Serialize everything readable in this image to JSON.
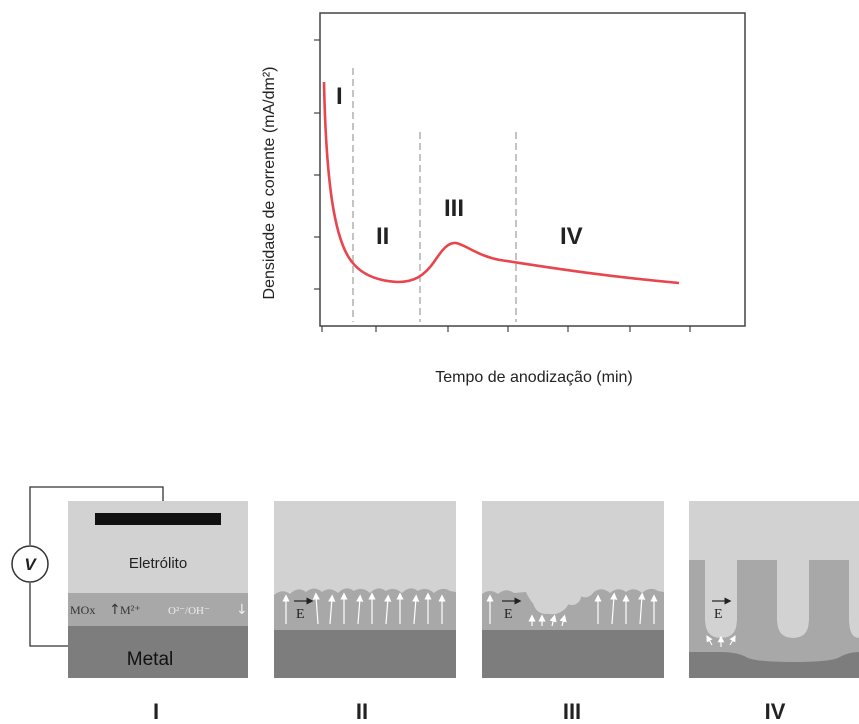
{
  "chart": {
    "ylabel": "Densidade de corrente (mA/dm²)",
    "xlabel": "Tempo de anodização (min)",
    "regions": [
      "I",
      "II",
      "III",
      "IV"
    ]
  },
  "panels": {
    "electrolyte_label": "Eletrólito",
    "metal_label": "Metal",
    "oxide_label": "MOx",
    "ion_metal": "M²⁺",
    "ion_oxygen": "O²⁻/OH⁻",
    "voltmeter": "V",
    "field": "E",
    "captions": [
      "I",
      "II",
      "III",
      "IV"
    ]
  },
  "chart_data": {
    "type": "line",
    "title": "",
    "xlabel": "Tempo de anodização (min)",
    "ylabel": "Densidade de corrente (mA/dm²)",
    "axis_ticks_labeled": false,
    "regions": [
      "I",
      "II",
      "III",
      "IV"
    ],
    "series": [
      {
        "color": "#e8454c",
        "shape": "rapid decay, shallow minimum, local peak, slow decay"
      }
    ],
    "grid": false
  },
  "colors": {
    "curve": "#e8454c",
    "electrolyte": "#d2d2d2",
    "oxide": "#a8a8a8",
    "metal": "#7d7d7d",
    "dash": "#bdbdbd"
  }
}
